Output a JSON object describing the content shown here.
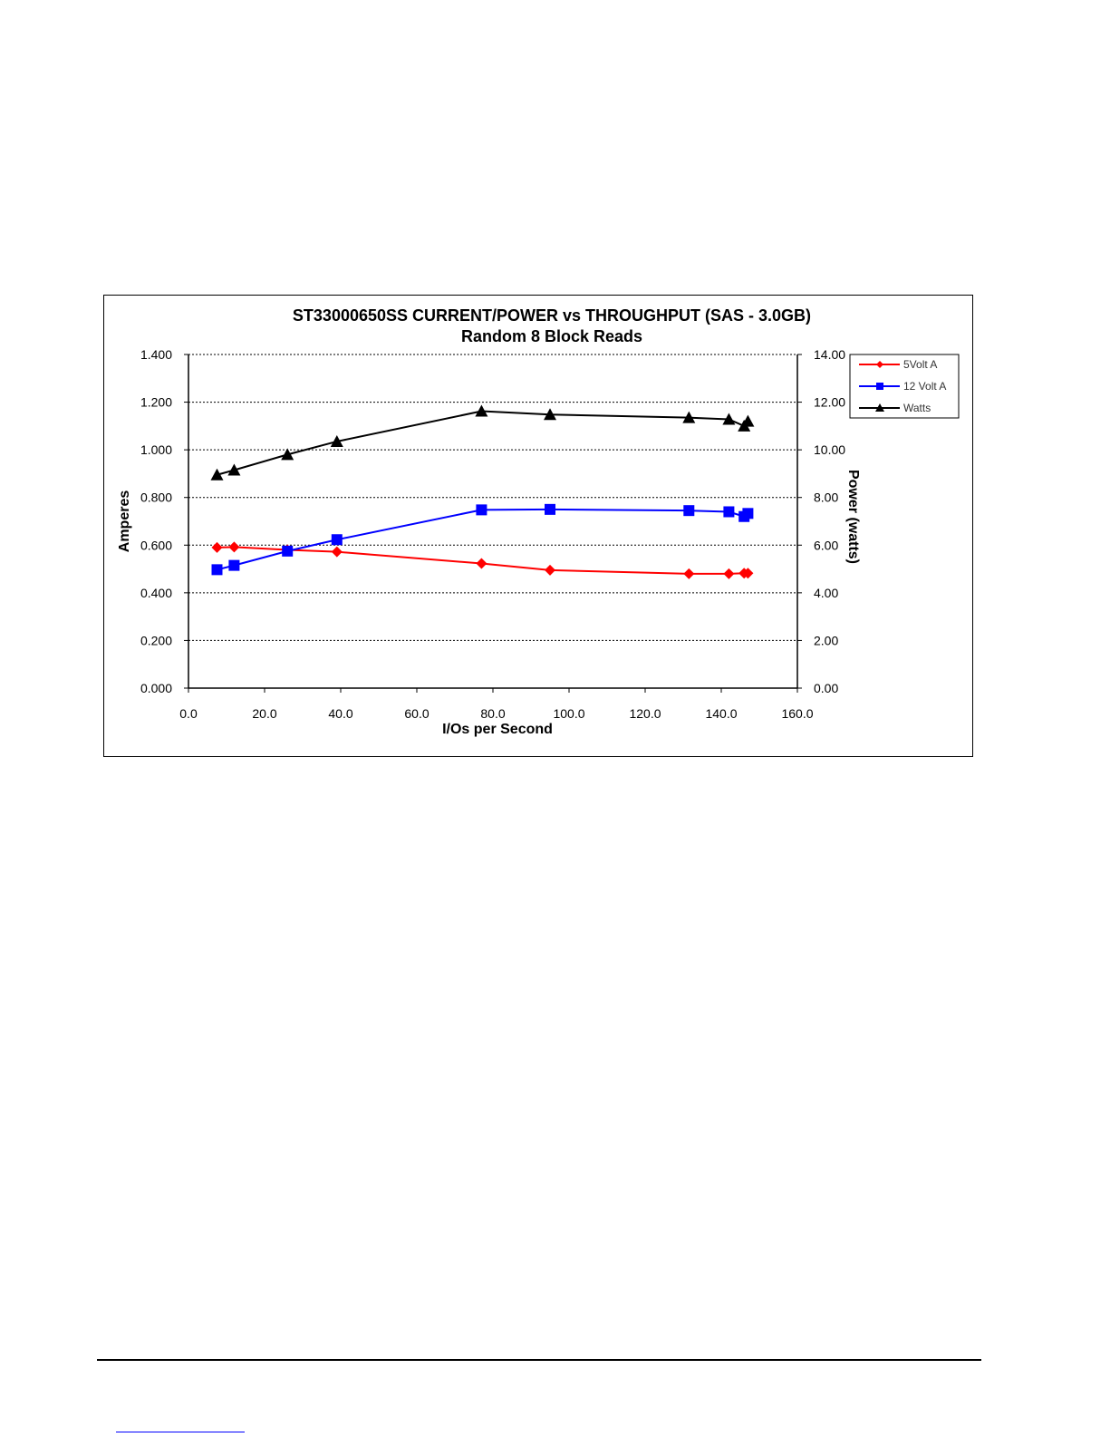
{
  "chart_data": {
    "type": "line",
    "title": "ST33000650SS CURRENT/POWER vs  THROUGHPUT (SAS - 3.0GB)",
    "subtitle": "Random 8 Block Reads",
    "xlabel": "I/Os per Second",
    "ylabel": "Amperes",
    "y2label": "Power (watts)",
    "xlim": [
      0,
      160
    ],
    "ylim": [
      0,
      1.4
    ],
    "y2lim": [
      0,
      14
    ],
    "xticks": [
      "0.0",
      "20.0",
      "40.0",
      "60.0",
      "80.0",
      "100.0",
      "120.0",
      "140.0",
      "160.0"
    ],
    "yticks": [
      "0.000",
      "0.200",
      "0.400",
      "0.600",
      "0.800",
      "1.000",
      "1.200",
      "1.400"
    ],
    "y2ticks": [
      "0.00",
      "2.00",
      "4.00",
      "6.00",
      "8.00",
      "10.00",
      "12.00",
      "14.00"
    ],
    "grid": "horizontal-dashed",
    "legend_position": "top-right",
    "series": [
      {
        "name": "5Volt A",
        "axis": "left",
        "color": "#ff0000",
        "marker": "diamond",
        "x": [
          7.5,
          12.0,
          26.0,
          39.0,
          77.0,
          95.0,
          131.5,
          142.0,
          146.0,
          147.0
        ],
        "y": [
          0.59,
          0.592,
          0.58,
          0.572,
          0.523,
          0.495,
          0.48,
          0.48,
          0.482,
          0.482
        ]
      },
      {
        "name": "12 Volt A",
        "axis": "left",
        "color": "#0000ff",
        "marker": "square",
        "x": [
          7.5,
          12.0,
          26.0,
          39.0,
          77.0,
          95.0,
          131.5,
          142.0,
          146.0,
          147.0
        ],
        "y": [
          0.497,
          0.515,
          0.575,
          0.623,
          0.748,
          0.75,
          0.745,
          0.74,
          0.72,
          0.733
        ]
      },
      {
        "name": "Watts",
        "axis": "right",
        "color": "#000000",
        "marker": "triangle",
        "x": [
          7.5,
          12.0,
          26.0,
          39.0,
          77.0,
          95.0,
          131.5,
          142.0,
          146.0,
          147.0
        ],
        "y": [
          8.95,
          9.15,
          9.8,
          10.35,
          11.62,
          11.48,
          11.35,
          11.28,
          11.0,
          11.2
        ]
      }
    ]
  }
}
